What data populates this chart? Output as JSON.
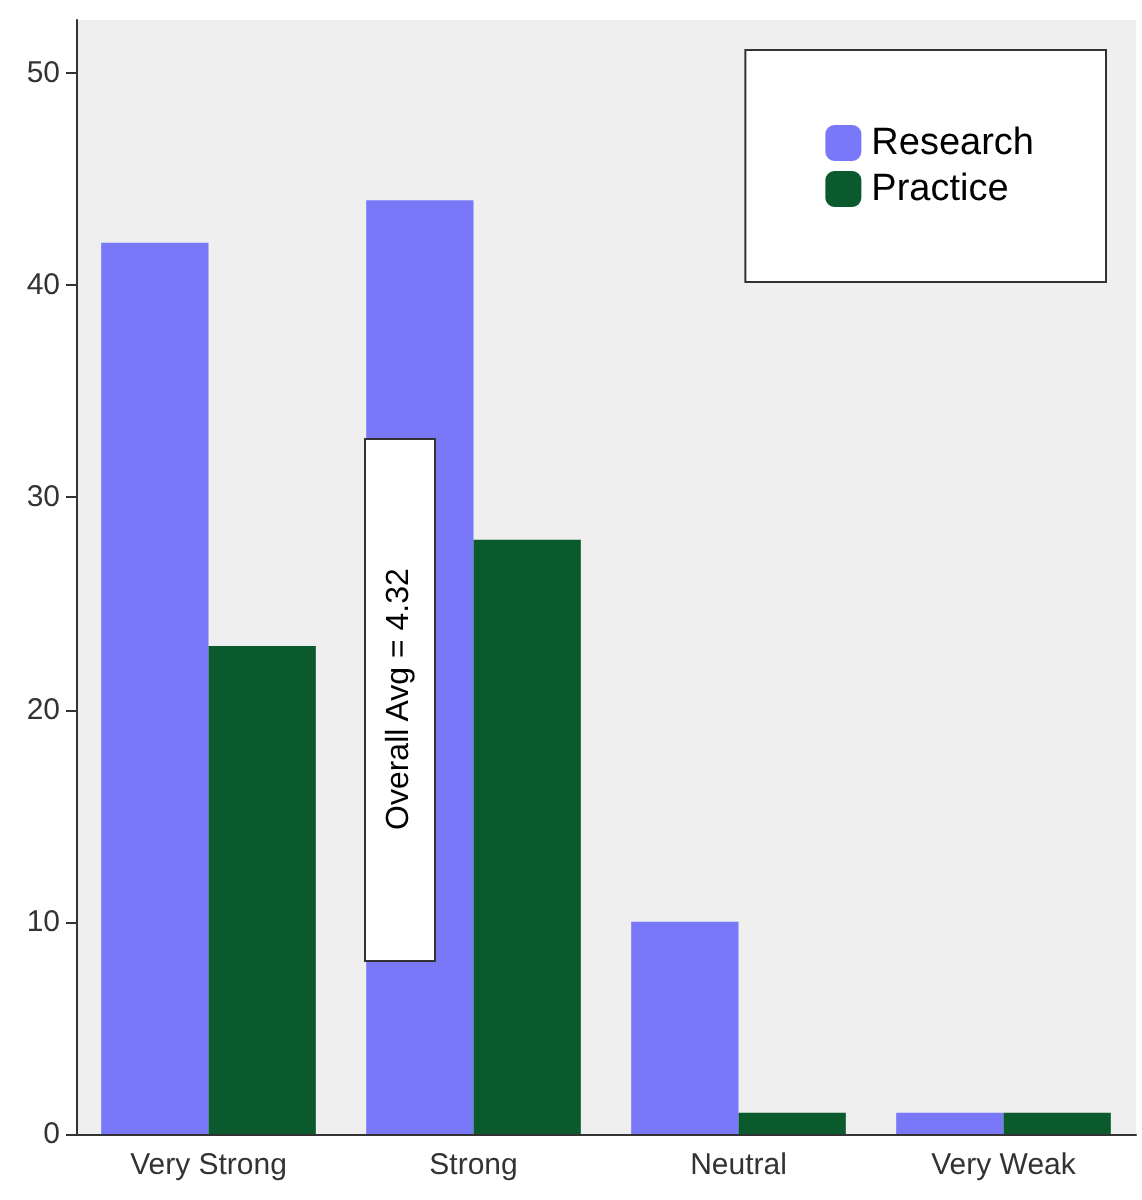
{
  "chart_data": {
    "type": "bar",
    "categories": [
      "Very Strong",
      "Strong",
      "Neutral",
      "Very Weak"
    ],
    "series": [
      {
        "name": "Research",
        "color": "#7878f8",
        "values": [
          42,
          44,
          10,
          1
        ]
      },
      {
        "name": "Practice",
        "color": "#0b5a2e",
        "values": [
          23,
          28,
          1,
          1
        ]
      }
    ],
    "ylim": [
      0,
      52.5
    ],
    "yticks": [
      0,
      10,
      20,
      30,
      40,
      50
    ],
    "grid": false,
    "legend": "top right",
    "annotations": [
      "Overall Avg = 4.32"
    ]
  }
}
